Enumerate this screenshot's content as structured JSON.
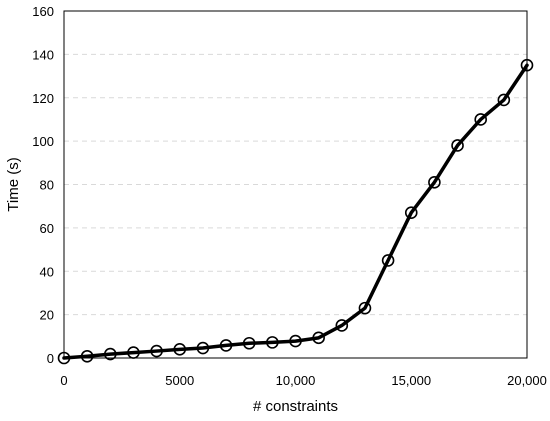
{
  "chart_data": {
    "type": "line",
    "title": "",
    "xlabel": "# constraints",
    "ylabel": "Time (s)",
    "xlim": [
      0,
      20000
    ],
    "ylim": [
      0,
      160
    ],
    "x_ticks": [
      0,
      5000,
      10000,
      15000,
      20000
    ],
    "x_tick_labels": [
      "0",
      "5000",
      "10,000",
      "15,000",
      "20,000"
    ],
    "y_ticks": [
      0,
      20,
      40,
      60,
      80,
      100,
      120,
      140,
      160
    ],
    "y_tick_labels": [
      "0",
      "20",
      "40",
      "60",
      "80",
      "100",
      "120",
      "140",
      "160"
    ],
    "grid": "horizontal dashed",
    "legend": "none",
    "marker": "open-circle",
    "line_color": "#000000",
    "grid_color": "#d9d9d9",
    "series": [
      {
        "x": [
          0,
          1000,
          2000,
          3000,
          4000,
          5000,
          6000,
          7000,
          8000,
          9000,
          10000,
          11000,
          12000,
          13000,
          14000,
          15000,
          16000,
          17000,
          18000,
          19000,
          20000
        ],
        "y": [
          0,
          0.8,
          1.8,
          2.5,
          3.2,
          4.0,
          4.6,
          5.8,
          6.8,
          7.2,
          7.8,
          9.3,
          15,
          23,
          45,
          67,
          81,
          98,
          110,
          119,
          135
        ]
      }
    ]
  }
}
